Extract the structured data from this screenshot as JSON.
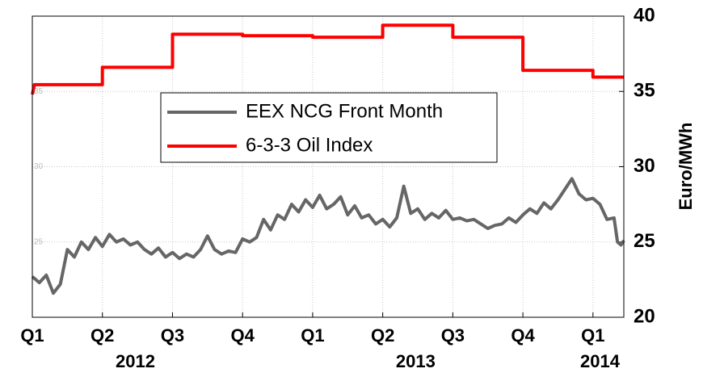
{
  "chart_data": {
    "type": "line",
    "ylabel": "Euro/MWh",
    "xlim": [
      0,
      8.44
    ],
    "xticks": [
      {
        "value": 0,
        "label": "Q1"
      },
      {
        "value": 1,
        "label": "Q2"
      },
      {
        "value": 2,
        "label": "Q3"
      },
      {
        "value": 3,
        "label": "Q4"
      },
      {
        "value": 4,
        "label": "Q1"
      },
      {
        "value": 5,
        "label": "Q2"
      },
      {
        "value": 6,
        "label": "Q3"
      },
      {
        "value": 7,
        "label": "Q4"
      },
      {
        "value": 8,
        "label": "Q1"
      }
    ],
    "year_labels": [
      {
        "value": 1.47,
        "label": "2012"
      },
      {
        "value": 5.47,
        "label": "2013"
      },
      {
        "value": 8.1,
        "label": "2014"
      }
    ],
    "ylim": [
      20,
      40
    ],
    "yticks": [
      20,
      25,
      30,
      35,
      40
    ],
    "grid": true,
    "series": [
      {
        "name": "EEX NCG Front Month",
        "color": "#666666",
        "x": [
          0,
          0.1,
          0.2,
          0.3,
          0.4,
          0.5,
          0.6,
          0.7,
          0.8,
          0.9,
          1,
          1.1,
          1.2,
          1.3,
          1.4,
          1.5,
          1.6,
          1.7,
          1.8,
          1.9,
          2,
          2.1,
          2.2,
          2.3,
          2.4,
          2.5,
          2.6,
          2.7,
          2.8,
          2.9,
          3,
          3.1,
          3.2,
          3.3,
          3.4,
          3.5,
          3.6,
          3.7,
          3.8,
          3.9,
          4,
          4.1,
          4.2,
          4.3,
          4.4,
          4.5,
          4.6,
          4.7,
          4.8,
          4.9,
          5,
          5.1,
          5.2,
          5.3,
          5.4,
          5.5,
          5.6,
          5.7,
          5.8,
          5.9,
          6,
          6.1,
          6.2,
          6.3,
          6.4,
          6.5,
          6.6,
          6.7,
          6.8,
          6.9,
          7,
          7.1,
          7.2,
          7.3,
          7.4,
          7.5,
          7.6,
          7.7,
          7.8,
          7.9,
          8,
          8.1,
          8.2,
          8.3,
          8.35,
          8.4,
          8.44
        ],
        "values": [
          22.7,
          22.3,
          22.8,
          21.6,
          22.2,
          24.5,
          24.0,
          25.0,
          24.5,
          25.3,
          24.7,
          25.5,
          25.0,
          25.2,
          24.8,
          25.0,
          24.5,
          24.2,
          24.6,
          24.0,
          24.3,
          23.9,
          24.2,
          24.0,
          24.5,
          25.4,
          24.5,
          24.2,
          24.4,
          24.3,
          25.2,
          25.0,
          25.3,
          26.5,
          25.8,
          26.8,
          26.5,
          27.5,
          27.0,
          27.8,
          27.3,
          28.1,
          27.2,
          27.5,
          28.0,
          26.8,
          27.4,
          26.6,
          26.8,
          26.2,
          26.5,
          26.0,
          26.6,
          28.7,
          26.9,
          27.2,
          26.5,
          26.9,
          26.6,
          27.1,
          26.5,
          26.6,
          26.4,
          26.5,
          26.2,
          25.9,
          26.1,
          26.2,
          26.6,
          26.3,
          26.8,
          27.2,
          26.9,
          27.6,
          27.2,
          27.8,
          28.5,
          29.2,
          28.2,
          27.8,
          27.9,
          27.5,
          26.5,
          26.6,
          25.0,
          24.8,
          25.1
        ]
      },
      {
        "name": "6-3-3 Oil Index",
        "color": "#ff0000",
        "x": [
          0,
          0.03,
          1,
          1,
          2,
          2,
          3,
          3,
          4,
          4,
          5,
          5,
          6,
          6,
          7,
          7,
          8,
          8,
          8.44
        ],
        "values": [
          34.8,
          35.45,
          35.45,
          36.6,
          36.6,
          38.8,
          38.8,
          38.7,
          38.7,
          38.6,
          38.6,
          39.4,
          39.4,
          38.6,
          38.6,
          36.4,
          36.4,
          35.95,
          35.95
        ]
      }
    ]
  }
}
